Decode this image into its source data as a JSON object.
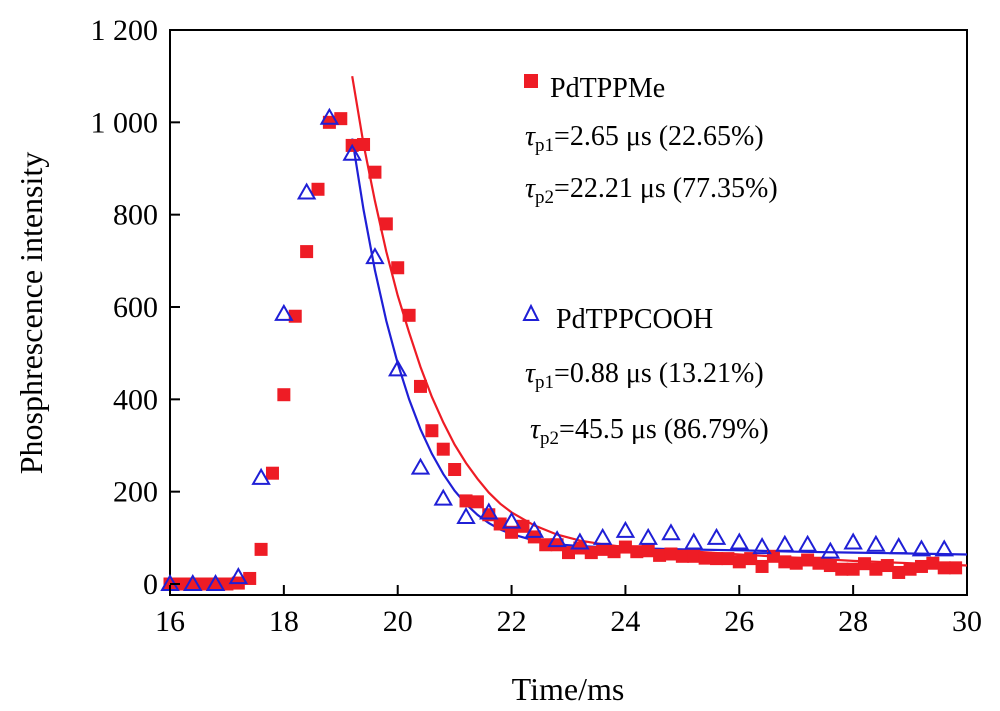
{
  "chart_data": {
    "type": "scatter",
    "xlabel": "Time/ms",
    "ylabel": "Phosphrescence intensity",
    "xlim": [
      16,
      30
    ],
    "ylim": [
      0,
      1200
    ],
    "xticks": [
      16,
      18,
      20,
      22,
      24,
      26,
      28,
      30
    ],
    "xtick_labels": [
      "16",
      "18",
      "20",
      "22",
      "24",
      "26",
      "28",
      "30"
    ],
    "yticks": [
      0,
      200,
      400,
      600,
      800,
      1000,
      1200
    ],
    "ytick_labels": [
      "0",
      "200",
      "400",
      "600",
      "800",
      "1 000",
      "1 200"
    ],
    "grid": false,
    "legend_position": "right",
    "series": [
      {
        "name": "PdTPPMe",
        "marker": "square",
        "color": "#ee1c25",
        "annotations": [
          {
            "symbol": "τ",
            "sub": "p1",
            "text": "=2.65 μs (22.65%)"
          },
          {
            "symbol": "τ",
            "sub": "p2",
            "text": "=22.21 μs (77.35%)"
          }
        ],
        "points": [
          [
            16.0,
            0
          ],
          [
            16.2,
            0
          ],
          [
            16.4,
            0
          ],
          [
            16.6,
            0
          ],
          [
            16.8,
            0
          ],
          [
            17.0,
            0
          ],
          [
            17.2,
            2
          ],
          [
            17.4,
            12
          ],
          [
            17.6,
            75
          ],
          [
            17.8,
            240
          ],
          [
            18.0,
            410
          ],
          [
            18.2,
            580
          ],
          [
            18.4,
            720
          ],
          [
            18.6,
            855
          ],
          [
            18.8,
            1000
          ],
          [
            19.0,
            1008
          ],
          [
            19.2,
            950
          ],
          [
            19.4,
            952
          ],
          [
            19.6,
            892
          ],
          [
            19.8,
            780
          ],
          [
            20.0,
            685
          ],
          [
            20.2,
            582
          ],
          [
            20.4,
            428
          ],
          [
            20.6,
            332
          ],
          [
            20.8,
            292
          ],
          [
            21.0,
            248
          ],
          [
            21.2,
            180
          ],
          [
            21.4,
            178
          ],
          [
            21.6,
            150
          ],
          [
            21.8,
            130
          ],
          [
            22.0,
            112
          ],
          [
            22.2,
            125
          ],
          [
            22.4,
            102
          ],
          [
            22.6,
            85
          ],
          [
            22.8,
            85
          ],
          [
            23.0,
            68
          ],
          [
            23.2,
            78
          ],
          [
            23.4,
            68
          ],
          [
            23.6,
            75
          ],
          [
            23.8,
            70
          ],
          [
            24.0,
            80
          ],
          [
            24.2,
            70
          ],
          [
            24.4,
            72
          ],
          [
            24.6,
            62
          ],
          [
            24.8,
            65
          ],
          [
            25.0,
            60
          ],
          [
            25.2,
            60
          ],
          [
            25.4,
            56
          ],
          [
            25.6,
            55
          ],
          [
            25.8,
            55
          ],
          [
            26.0,
            48
          ],
          [
            26.2,
            55
          ],
          [
            26.4,
            38
          ],
          [
            26.6,
            60
          ],
          [
            26.8,
            48
          ],
          [
            27.0,
            45
          ],
          [
            27.2,
            52
          ],
          [
            27.4,
            45
          ],
          [
            27.6,
            40
          ],
          [
            27.8,
            32
          ],
          [
            28.0,
            32
          ],
          [
            28.2,
            44
          ],
          [
            28.4,
            32
          ],
          [
            28.6,
            40
          ],
          [
            28.8,
            25
          ],
          [
            29.0,
            32
          ],
          [
            29.2,
            38
          ],
          [
            29.4,
            45
          ],
          [
            29.6,
            35
          ],
          [
            29.8,
            35
          ]
        ],
        "fit": [
          [
            19.2,
            1100
          ],
          [
            19.4,
            952
          ],
          [
            19.6,
            830
          ],
          [
            19.8,
            720
          ],
          [
            20.0,
            625
          ],
          [
            20.2,
            545
          ],
          [
            20.4,
            470
          ],
          [
            20.6,
            405
          ],
          [
            20.8,
            350
          ],
          [
            21.0,
            302
          ],
          [
            21.2,
            262
          ],
          [
            21.4,
            228
          ],
          [
            21.6,
            198
          ],
          [
            21.8,
            174
          ],
          [
            22.0,
            155
          ],
          [
            22.4,
            127
          ],
          [
            22.8,
            107
          ],
          [
            23.2,
            94
          ],
          [
            23.6,
            86
          ],
          [
            24.0,
            80
          ],
          [
            25.0,
            72
          ],
          [
            26.0,
            64
          ],
          [
            27.0,
            57
          ],
          [
            28.0,
            50
          ],
          [
            29.0,
            45
          ],
          [
            30.0,
            40
          ]
        ]
      },
      {
        "name": "PdTPPCOOH",
        "marker": "triangle-open",
        "color": "#1f1fd6",
        "annotations": [
          {
            "symbol": "τ",
            "sub": "p1",
            "text": "=0.88 μs (13.21%)"
          },
          {
            "symbol": "τ",
            "sub": "p2",
            "text": "=45.5 μs (86.79%)"
          }
        ],
        "points": [
          [
            16.0,
            0
          ],
          [
            16.4,
            0
          ],
          [
            16.8,
            0
          ],
          [
            17.2,
            15
          ],
          [
            17.6,
            230
          ],
          [
            18.0,
            585
          ],
          [
            18.4,
            848
          ],
          [
            18.8,
            1010
          ],
          [
            19.2,
            932
          ],
          [
            19.6,
            708
          ],
          [
            20.0,
            465
          ],
          [
            20.4,
            252
          ],
          [
            20.8,
            185
          ],
          [
            21.2,
            145
          ],
          [
            21.6,
            155
          ],
          [
            22.0,
            135
          ],
          [
            22.4,
            115
          ],
          [
            22.8,
            95
          ],
          [
            23.2,
            90
          ],
          [
            23.6,
            100
          ],
          [
            24.0,
            115
          ],
          [
            24.4,
            100
          ],
          [
            24.8,
            110
          ],
          [
            25.2,
            90
          ],
          [
            25.6,
            100
          ],
          [
            26.0,
            90
          ],
          [
            26.4,
            80
          ],
          [
            26.8,
            85
          ],
          [
            27.2,
            85
          ],
          [
            27.6,
            70
          ],
          [
            28.0,
            90
          ],
          [
            28.4,
            85
          ],
          [
            28.8,
            80
          ],
          [
            29.2,
            75
          ],
          [
            29.6,
            75
          ]
        ],
        "fit": [
          [
            19.2,
            965
          ],
          [
            19.4,
            810
          ],
          [
            19.6,
            680
          ],
          [
            19.8,
            570
          ],
          [
            20.0,
            478
          ],
          [
            20.2,
            400
          ],
          [
            20.4,
            335
          ],
          [
            20.6,
            282
          ],
          [
            20.8,
            238
          ],
          [
            21.0,
            202
          ],
          [
            21.2,
            173
          ],
          [
            21.4,
            150
          ],
          [
            21.6,
            132
          ],
          [
            21.8,
            118
          ],
          [
            22.0,
            108
          ],
          [
            22.4,
            94
          ],
          [
            22.8,
            86
          ],
          [
            23.2,
            82
          ],
          [
            23.6,
            80
          ],
          [
            24.0,
            78
          ],
          [
            25.0,
            75
          ],
          [
            26.0,
            73
          ],
          [
            27.0,
            70
          ],
          [
            28.0,
            68
          ],
          [
            29.0,
            66
          ],
          [
            30.0,
            64
          ]
        ]
      }
    ]
  }
}
